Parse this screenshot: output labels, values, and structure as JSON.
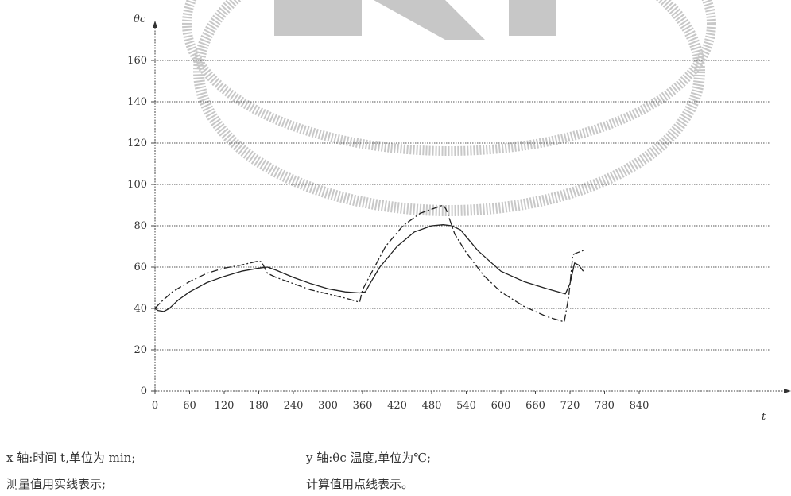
{
  "chart_data": {
    "type": "line",
    "ylabel": "θc",
    "xlabel": "t",
    "xlim": [
      0,
      870
    ],
    "ylim": [
      0,
      170
    ],
    "xticks": [
      0,
      60,
      120,
      180,
      240,
      300,
      360,
      420,
      480,
      540,
      600,
      660,
      720,
      780,
      840
    ],
    "yticks": [
      0,
      20,
      40,
      60,
      80,
      100,
      120,
      140,
      160
    ],
    "grid": "horizontal",
    "series": [
      {
        "style": "solid",
        "x": [
          0,
          5,
          15,
          25,
          40,
          60,
          90,
          120,
          150,
          180,
          195,
          210,
          240,
          270,
          300,
          330,
          355,
          365,
          375,
          390,
          420,
          450,
          480,
          500,
          515,
          530,
          560,
          600,
          640,
          680,
          712,
          720,
          728,
          735,
          743
        ],
        "y": [
          40,
          39,
          38.5,
          40,
          44,
          48,
          52.5,
          55.5,
          58,
          59.5,
          60,
          58.5,
          55,
          52,
          49.5,
          48,
          47.5,
          48,
          53,
          60,
          70,
          77,
          80,
          80.5,
          80,
          78,
          68,
          58,
          53,
          49.5,
          47,
          52,
          62,
          61,
          58
        ]
      },
      {
        "style": "dashed",
        "x": [
          0,
          10,
          30,
          60,
          90,
          120,
          150,
          180,
          185,
          195,
          210,
          240,
          270,
          300,
          330,
          355,
          360,
          375,
          400,
          430,
          460,
          490,
          500,
          505,
          510,
          520,
          540,
          570,
          600,
          640,
          680,
          710,
          718,
          725,
          733,
          743
        ],
        "y": [
          40,
          43,
          48,
          53,
          57,
          59.5,
          61,
          63,
          62.5,
          57,
          55,
          52,
          49,
          47,
          45,
          43,
          49,
          57,
          70,
          80,
          86,
          89,
          90,
          88,
          84,
          76,
          67,
          56,
          48,
          41,
          36,
          33.5,
          46,
          66,
          67,
          68
        ]
      }
    ]
  },
  "captions": {
    "x_axis": "x 轴:时间 t,单位为 min;",
    "y_axis": "y 轴:θc 温度,单位为℃;",
    "measured": "测量值用实线表示;",
    "calculated": "计算值用点线表示。"
  }
}
